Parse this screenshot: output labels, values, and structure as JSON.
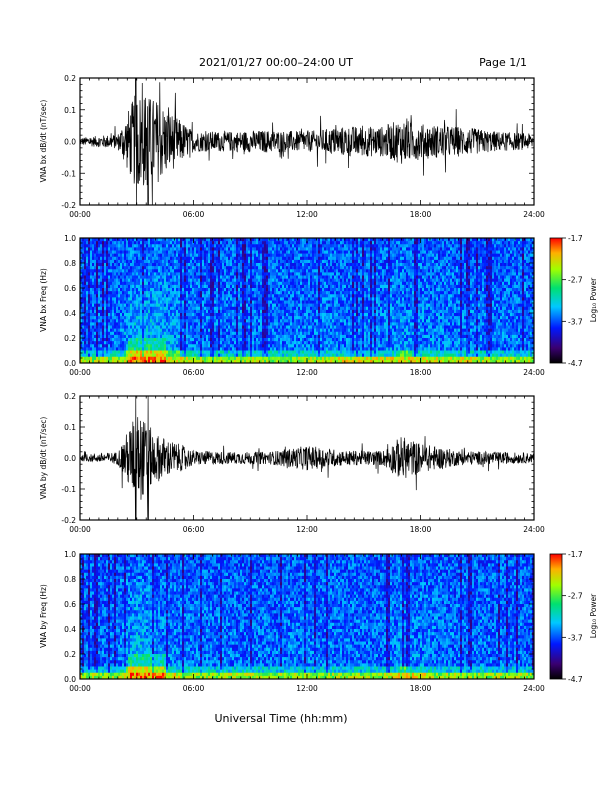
{
  "header": {
    "title": "2021/01/27  00:00–24:00 UT",
    "page": "Page 1/1"
  },
  "x_axis": {
    "title": "Universal Time (hh:mm)",
    "ticks": [
      "00:00",
      "06:00",
      "12:00",
      "18:00",
      "24:00"
    ]
  },
  "colorbar": {
    "label": "Log₁₀ Power",
    "ticks": [
      "-1.7",
      "-2.7",
      "-3.7",
      "-4.7"
    ]
  },
  "chart_data": [
    {
      "type": "line",
      "ylabel": "VNA bx dB/dt (nT/sec)",
      "ylim": [
        -0.2,
        0.2
      ],
      "xlim_hours": [
        0,
        24
      ],
      "yticks": [
        "0.2",
        "0.1",
        "0.0",
        "-0.1",
        "-0.2"
      ],
      "x": [
        "00:00",
        "02:00",
        "03:00",
        "04:00",
        "06:00",
        "08:00",
        "10:00",
        "12:00",
        "14:00",
        "16:00",
        "17:00",
        "18:00",
        "20:00",
        "22:00",
        "24:00"
      ],
      "amplitude": [
        0.015,
        0.03,
        0.2,
        0.17,
        0.04,
        0.04,
        0.045,
        0.04,
        0.06,
        0.06,
        0.09,
        0.07,
        0.06,
        0.04,
        0.03
      ]
    },
    {
      "type": "heatmap",
      "ylabel": "VNA bx Freq (Hz)",
      "ylim": [
        0.0,
        1.0
      ],
      "yticks": [
        "1.0",
        "0.8",
        "0.6",
        "0.4",
        "0.2",
        "0.0"
      ],
      "zlim": [
        -4.7,
        -1.7
      ],
      "colorbar_ticks": [
        "-1.7",
        "-2.7",
        "-3.7",
        "-4.7"
      ]
    },
    {
      "type": "line",
      "ylabel": "VNA by dB/dt (nT/sec)",
      "ylim": [
        -0.2,
        0.2
      ],
      "xlim_hours": [
        0,
        24
      ],
      "yticks": [
        "0.2",
        "0.1",
        "0.0",
        "-0.1",
        "-0.2"
      ],
      "x": [
        "00:00",
        "02:00",
        "03:00",
        "04:00",
        "06:00",
        "08:00",
        "10:00",
        "12:00",
        "14:00",
        "16:00",
        "17:00",
        "18:00",
        "20:00",
        "22:00",
        "24:00"
      ],
      "amplitude": [
        0.012,
        0.025,
        0.19,
        0.1,
        0.03,
        0.025,
        0.025,
        0.05,
        0.03,
        0.03,
        0.09,
        0.06,
        0.03,
        0.025,
        0.02
      ]
    },
    {
      "type": "heatmap",
      "ylabel": "VNA by Freq (Hz)",
      "ylim": [
        0.0,
        1.0
      ],
      "yticks": [
        "1.0",
        "0.8",
        "0.6",
        "0.4",
        "0.2",
        "0.0"
      ],
      "zlim": [
        -4.7,
        -1.7
      ],
      "colorbar_ticks": [
        "-1.7",
        "-2.7",
        "-3.7",
        "-4.7"
      ]
    }
  ]
}
